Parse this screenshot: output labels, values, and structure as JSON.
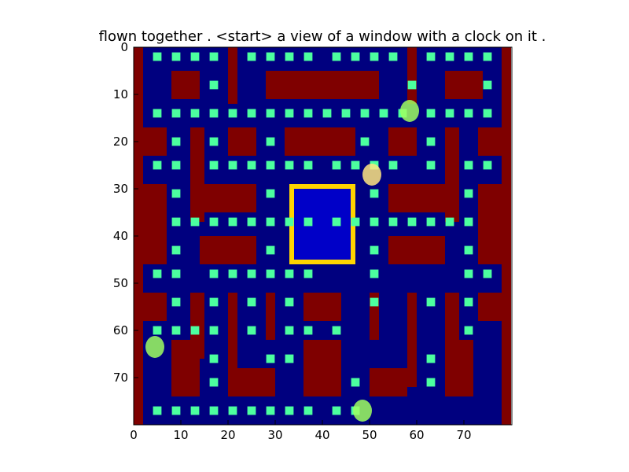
{
  "figure": {
    "title": "flown together . <start> a view of a window with a clock on it .",
    "xlim": [
      0,
      80
    ],
    "ylim": [
      80,
      0
    ],
    "xticks": [
      "0",
      "10",
      "20",
      "30",
      "40",
      "50",
      "60",
      "70"
    ],
    "yticks": [
      "0",
      "10",
      "20",
      "30",
      "40",
      "50",
      "60",
      "70"
    ],
    "colormap": "jet"
  },
  "colors": {
    "background": "#00007f",
    "wall": "#7f0000",
    "wall_edge": "#ff2a00",
    "inner_panel": "#0000c8",
    "dot": "#4cff9f",
    "dot_border": "#00c8ff",
    "bar_edge": "#2adfff",
    "bar_gold": "#ffd400",
    "player": "#ffe680",
    "ghost": "#9fff60"
  },
  "maze": {
    "player": {
      "x": 50.5,
      "y": 27
    },
    "ghosts": [
      {
        "x": 58.5,
        "y": 13.5
      },
      {
        "x": 4.5,
        "y": 63.5
      },
      {
        "x": 48.5,
        "y": 77
      }
    ]
  }
}
